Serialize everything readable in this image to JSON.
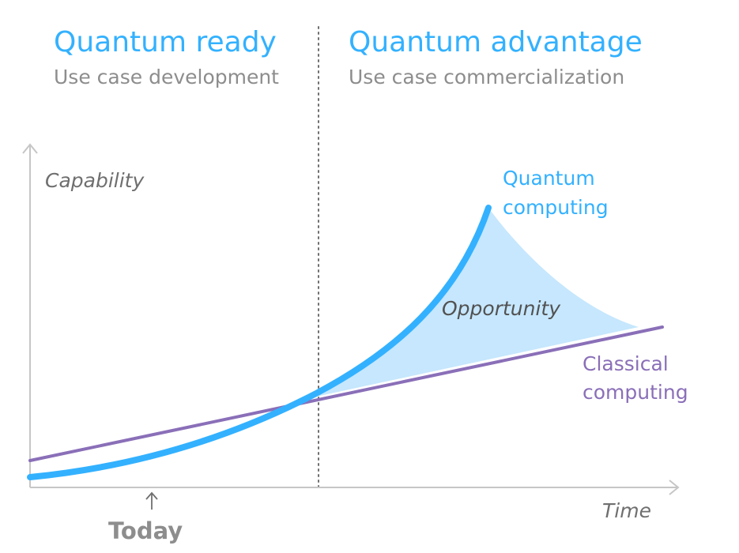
{
  "phases": [
    {
      "title": "Quantum ready",
      "subtitle": "Use case development"
    },
    {
      "title": "Quantum advantage",
      "subtitle": "Use case commercialization"
    }
  ],
  "axes": {
    "y_label": "Capability",
    "x_label": "Time",
    "marker_label": "Today"
  },
  "series": {
    "quantum": {
      "label_line1": "Quantum",
      "label_line2": "computing",
      "color": "#33b1ff"
    },
    "classical": {
      "label_line1": "Classical",
      "label_line2": "computing",
      "color": "#8a6fb8"
    }
  },
  "region": {
    "label": "Opportunity",
    "color": "#c6e7fd"
  },
  "colors": {
    "title": "#33b1ff",
    "subtitle": "#8d8d8d",
    "axis": "#c6c6c6",
    "axis_label": "#6f6f6f",
    "today": "#8d8d8d",
    "divider": "#6f6f6f"
  }
}
